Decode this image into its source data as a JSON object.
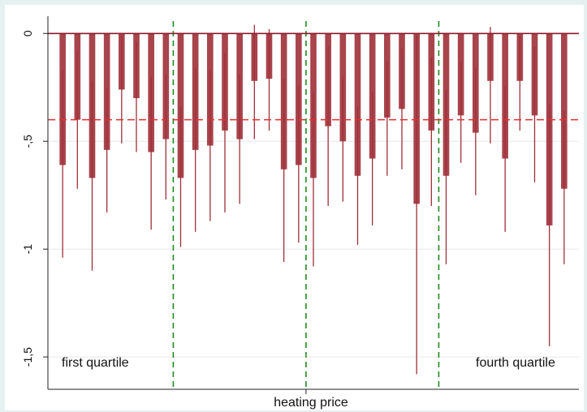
{
  "chart_data": {
    "type": "bar",
    "xlabel": "heating price",
    "ylabel": "",
    "ylim": [
      -1.65,
      0.08
    ],
    "yticks": [
      0,
      -0.5,
      -1,
      -1.5
    ],
    "ytick_labels": [
      "0",
      "-,5",
      "-1",
      "-1,5"
    ],
    "grid": "horizontal",
    "reference_line": {
      "y": -0.4,
      "style": "dashed",
      "color": "#e03030"
    },
    "zero_line": {
      "y": 0,
      "color": "#8b1a2a"
    },
    "quartile_dividers": {
      "positions": [
        8.5,
        17.5,
        26.5
      ],
      "color": "#1f8a1f",
      "style": "dashed"
    },
    "annotations": [
      {
        "text": "first quartile",
        "anchor": "bottom-left"
      },
      {
        "text": "fourth quartile",
        "anchor": "bottom-right"
      }
    ],
    "bar_color": "#9e3038",
    "whisker_color": "#9e3038",
    "x": [
      1,
      2,
      3,
      4,
      5,
      6,
      7,
      8,
      9,
      10,
      11,
      12,
      13,
      14,
      15,
      16,
      17,
      18,
      19,
      20,
      21,
      22,
      23,
      24,
      25,
      26,
      27,
      28,
      29,
      30,
      31,
      32,
      33,
      34,
      35
    ],
    "values": [
      -0.61,
      -0.4,
      -0.67,
      -0.54,
      -0.26,
      -0.3,
      -0.55,
      -0.49,
      -0.67,
      -0.54,
      -0.52,
      -0.45,
      -0.49,
      -0.22,
      -0.21,
      -0.63,
      -0.61,
      -0.67,
      -0.43,
      -0.5,
      -0.66,
      -0.58,
      -0.39,
      -0.35,
      -0.79,
      -0.45,
      -0.66,
      -0.38,
      -0.46,
      -0.22,
      -0.58,
      -0.22,
      -0.38,
      -0.89,
      -0.72
    ],
    "ci_low": [
      -1.04,
      -0.72,
      -1.1,
      -0.83,
      -0.51,
      -0.55,
      -0.91,
      -0.77,
      -0.99,
      -0.92,
      -0.87,
      -0.83,
      -0.79,
      -0.49,
      -0.45,
      -1.06,
      -0.97,
      -1.08,
      -0.8,
      -0.78,
      -0.98,
      -0.89,
      -0.66,
      -0.63,
      -1.58,
      -0.8,
      -1.07,
      -0.6,
      -0.75,
      -0.51,
      -0.92,
      -0.45,
      -0.69,
      -1.45,
      -1.07
    ],
    "ci_high": [
      -0.17,
      -0.08,
      -0.22,
      -0.25,
      -0.01,
      -0.04,
      -0.2,
      -0.19,
      -0.34,
      -0.16,
      -0.17,
      -0.09,
      -0.19,
      0.04,
      0.02,
      -0.21,
      -0.24,
      -0.27,
      -0.06,
      -0.2,
      -0.34,
      -0.27,
      -0.13,
      -0.07,
      -0.01,
      -0.11,
      -0.26,
      -0.13,
      -0.16,
      0.03,
      -0.24,
      -0.01,
      -0.06,
      -0.33,
      -0.36
    ]
  }
}
